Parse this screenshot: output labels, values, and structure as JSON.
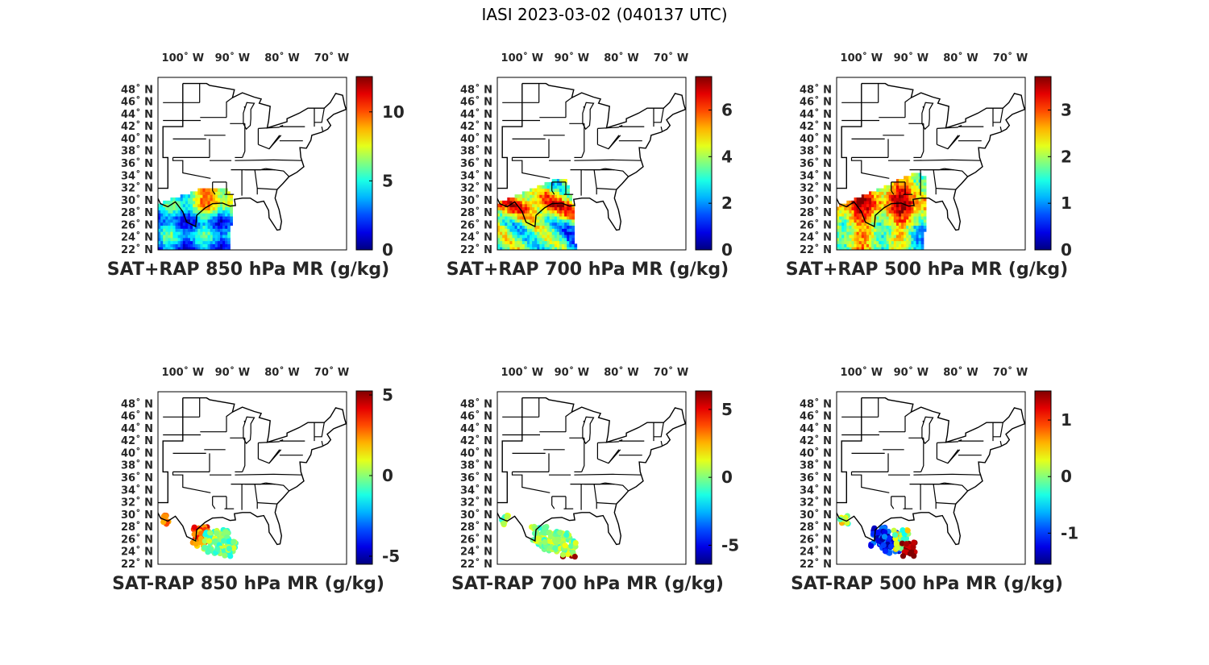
{
  "figure": {
    "title": "IASI 2023-03-02 (040137 UTC)"
  },
  "map_axes": {
    "lon_ticks": [
      {
        "label": "100˚ W",
        "lon": -100
      },
      {
        "label": "90˚ W",
        "lon": -90
      },
      {
        "label": "80˚ W",
        "lon": -80
      },
      {
        "label": "70˚ W",
        "lon": -70
      }
    ],
    "lat_ticks": [
      {
        "label": "48˚ N",
        "lat": 48
      },
      {
        "label": "46˚ N",
        "lat": 46
      },
      {
        "label": "44˚ N",
        "lat": 44
      },
      {
        "label": "42˚ N",
        "lat": 42
      },
      {
        "label": "40˚ N",
        "lat": 40
      },
      {
        "label": "38˚ N",
        "lat": 38
      },
      {
        "label": "36˚ N",
        "lat": 36
      },
      {
        "label": "34˚ N",
        "lat": 34
      },
      {
        "label": "32˚ N",
        "lat": 32
      },
      {
        "label": "30˚ N",
        "lat": 30
      },
      {
        "label": "28˚ N",
        "lat": 28
      },
      {
        "label": "26˚ N",
        "lat": 26
      },
      {
        "label": "24˚ N",
        "lat": 24
      },
      {
        "label": "22˚ N",
        "lat": 22
      }
    ],
    "lon_range": [
      -105,
      -67
    ],
    "lat_range": [
      22,
      50
    ]
  },
  "colormap": "jet",
  "panels": [
    {
      "title": "SAT+RAP 850 hPa MR (g/kg)",
      "type": "field",
      "clim": [
        0,
        12.5
      ],
      "cbar_ticks": [
        {
          "label": "0",
          "v": 0
        },
        {
          "label": "5",
          "v": 5
        },
        {
          "label": "10",
          "v": 10
        }
      ]
    },
    {
      "title": "SAT+RAP 700 hPa MR (g/kg)",
      "type": "field",
      "clim": [
        0,
        7.4
      ],
      "cbar_ticks": [
        {
          "label": "0",
          "v": 0
        },
        {
          "label": "2",
          "v": 2
        },
        {
          "label": "4",
          "v": 4
        },
        {
          "label": "6",
          "v": 6
        }
      ]
    },
    {
      "title": "SAT+RAP 500 hPa MR (g/kg)",
      "type": "field",
      "clim": [
        0,
        3.7
      ],
      "cbar_ticks": [
        {
          "label": "0",
          "v": 0
        },
        {
          "label": "1",
          "v": 1
        },
        {
          "label": "2",
          "v": 2
        },
        {
          "label": "3",
          "v": 3
        }
      ]
    },
    {
      "title": "SAT-RAP 850 hPa MR (g/kg)",
      "type": "diff",
      "clim": [
        -5.5,
        5.2
      ],
      "cbar_ticks": [
        {
          "label": "-5",
          "v": -5
        },
        {
          "label": "0",
          "v": 0
        },
        {
          "label": "5",
          "v": 5
        }
      ]
    },
    {
      "title": "SAT-RAP 700 hPa MR (g/kg)",
      "type": "diff",
      "clim": [
        -6.4,
        6.3
      ],
      "cbar_ticks": [
        {
          "label": "-5",
          "v": -5
        },
        {
          "label": "0",
          "v": 0
        },
        {
          "label": "5",
          "v": 5
        }
      ]
    },
    {
      "title": "SAT-RAP 500 hPa MR (g/kg)",
      "type": "diff",
      "clim": [
        -1.55,
        1.5
      ],
      "cbar_ticks": [
        {
          "label": "-1",
          "v": -1
        },
        {
          "label": "0",
          "v": 0
        },
        {
          "label": "1",
          "v": 1
        }
      ]
    }
  ]
}
